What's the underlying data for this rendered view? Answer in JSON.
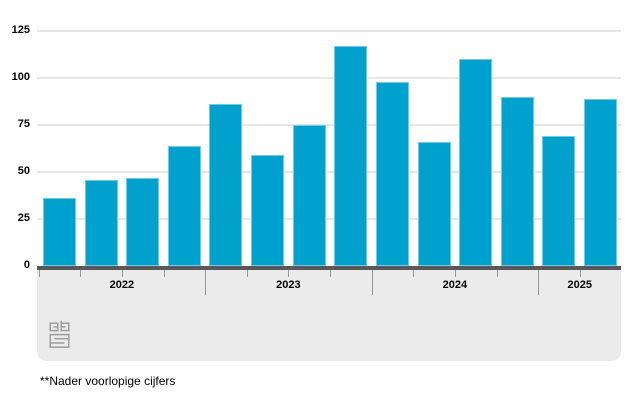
{
  "chart_data": {
    "type": "bar",
    "title": "",
    "xlabel": "",
    "ylabel": "",
    "ylim": [
      0,
      125
    ],
    "yticks": [
      0,
      25,
      50,
      75,
      100,
      125
    ],
    "grid": true,
    "legend": "none",
    "bar_color": "#00a1cd",
    "categories": [
      "2022",
      "2023",
      "2024",
      "2025"
    ],
    "groups": [
      {
        "label": "2022",
        "values": [
          36,
          46,
          47,
          64
        ]
      },
      {
        "label": "2023",
        "values": [
          86,
          59,
          75,
          117
        ]
      },
      {
        "label": "2024",
        "values": [
          98,
          66,
          110,
          90
        ]
      },
      {
        "label": "2025",
        "values": [
          69,
          89
        ]
      }
    ],
    "footnote": "**Nader voorlopige cijfers"
  },
  "colors": {
    "bar": "#00a1cd",
    "axis_line": "#58585a",
    "gridline": "#e6e6e6",
    "band": "#ebebeb",
    "tick": "#999999",
    "text": "#000000",
    "logo": "#9c9c9c"
  },
  "icons": {
    "logo": "cbs-logo"
  }
}
